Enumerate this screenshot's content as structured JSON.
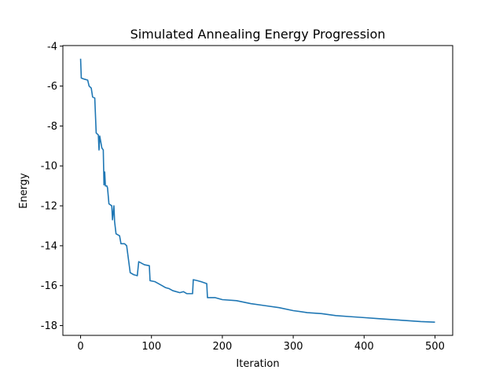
{
  "chart_data": {
    "type": "line",
    "title": "Simulated Annealing Energy Progression",
    "xlabel": "Iteration",
    "ylabel": "Energy",
    "color": "#1f77b4",
    "x": [
      0,
      1,
      5,
      10,
      12,
      15,
      17,
      20,
      22,
      25,
      26,
      27,
      29,
      30,
      32,
      33,
      34,
      35,
      37,
      38,
      40,
      44,
      45,
      47,
      48,
      50,
      55,
      57,
      62,
      65,
      70,
      75,
      80,
      82,
      90,
      97,
      98,
      105,
      110,
      115,
      120,
      125,
      130,
      140,
      145,
      150,
      158,
      159,
      165,
      170,
      178,
      179,
      190,
      200,
      220,
      240,
      260,
      280,
      300,
      320,
      340,
      360,
      380,
      400,
      420,
      440,
      460,
      480,
      500
    ],
    "values": [
      -4.63,
      -5.6,
      -5.65,
      -5.7,
      -6.0,
      -6.1,
      -6.55,
      -6.6,
      -8.35,
      -8.45,
      -9.2,
      -8.5,
      -8.9,
      -9.1,
      -9.2,
      -10.95,
      -10.3,
      -11.0,
      -11.0,
      -11.1,
      -11.9,
      -12.0,
      -12.7,
      -12.0,
      -12.8,
      -13.4,
      -13.5,
      -13.9,
      -13.9,
      -14.0,
      -15.35,
      -15.45,
      -15.5,
      -14.8,
      -14.95,
      -15.0,
      -15.75,
      -15.8,
      -15.9,
      -16.0,
      -16.1,
      -16.15,
      -16.25,
      -16.35,
      -16.3,
      -16.4,
      -16.4,
      -15.7,
      -15.75,
      -15.8,
      -15.9,
      -16.6,
      -16.6,
      -16.7,
      -16.75,
      -16.9,
      -17.0,
      -17.1,
      -17.25,
      -17.35,
      -17.4,
      -17.5,
      -17.55,
      -17.6,
      -17.65,
      -17.7,
      -17.75,
      -17.8,
      -17.83
    ],
    "xlim": [
      -25,
      525
    ],
    "ylim": [
      -18.49,
      -3.97
    ],
    "xticks": [
      0,
      100,
      200,
      300,
      400,
      500
    ],
    "yticks": [
      -18,
      -16,
      -14,
      -12,
      -10,
      -8,
      -6,
      -4
    ]
  }
}
